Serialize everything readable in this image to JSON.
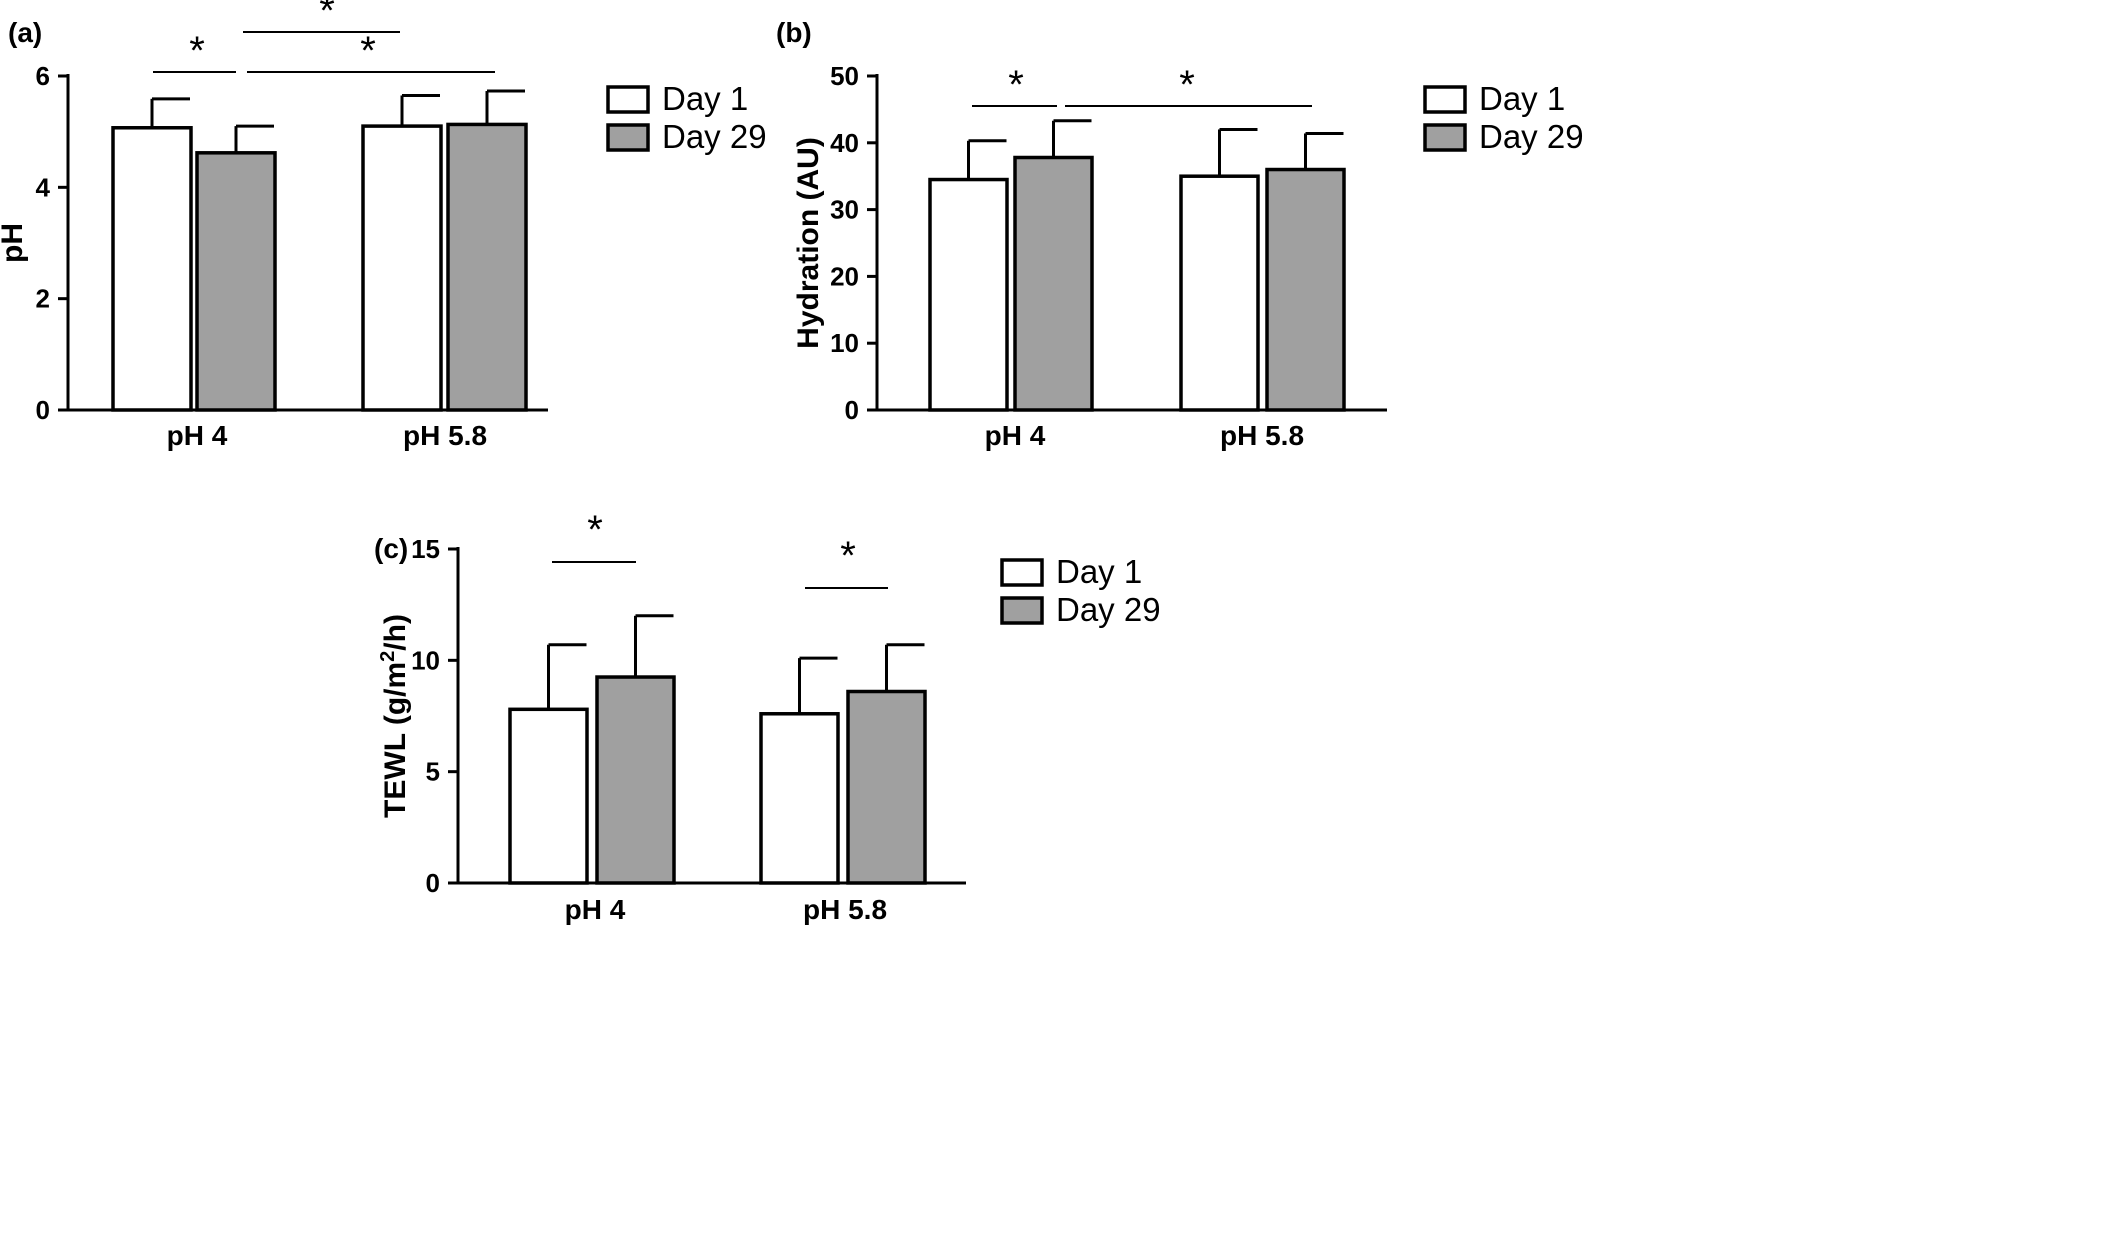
{
  "colors": {
    "day1": "#ffffff",
    "day29": "#a0a0a0",
    "ink": "#000000"
  },
  "legend": [
    "Day 1",
    "Day 29"
  ],
  "chart_data": [
    {
      "panel": "(a)",
      "type": "bar",
      "categories": [
        "pH 4",
        "pH 5.8"
      ],
      "series": [
        {
          "name": "Day 1",
          "values": [
            5.07,
            5.1
          ],
          "errors": [
            0.52,
            0.55
          ]
        },
        {
          "name": "Day 29",
          "values": [
            4.62,
            5.13
          ],
          "errors": [
            0.48,
            0.6
          ]
        }
      ],
      "ylabel": "pH",
      "ylim": [
        0,
        6
      ],
      "yticks": [
        0,
        2,
        4,
        6
      ],
      "significance": [
        "*",
        "*",
        "*"
      ]
    },
    {
      "panel": "(b)",
      "type": "bar",
      "categories": [
        "pH 4",
        "pH 5.8"
      ],
      "series": [
        {
          "name": "Day 1",
          "values": [
            34.5,
            35.0
          ],
          "errors": [
            5.8,
            7.0
          ]
        },
        {
          "name": "Day 29",
          "values": [
            37.8,
            36.0
          ],
          "errors": [
            5.5,
            5.4
          ]
        }
      ],
      "ylabel": "Hydration (AU)",
      "ylim": [
        0,
        50
      ],
      "yticks": [
        0,
        10,
        20,
        30,
        40,
        50
      ],
      "significance": [
        "*",
        "*"
      ]
    },
    {
      "panel": "(c)",
      "type": "bar",
      "categories": [
        "pH 4",
        "pH 5.8"
      ],
      "series": [
        {
          "name": "Day 1",
          "values": [
            7.8,
            7.6
          ],
          "errors": [
            2.9,
            2.5
          ]
        },
        {
          "name": "Day 29",
          "values": [
            9.25,
            8.6
          ],
          "errors": [
            2.75,
            2.1
          ]
        }
      ],
      "ylabel": "TEWL (g/m2/h)",
      "ylim": [
        0,
        15
      ],
      "yticks": [
        0,
        5,
        10,
        15
      ],
      "significance": [
        "*",
        "*"
      ]
    }
  ]
}
